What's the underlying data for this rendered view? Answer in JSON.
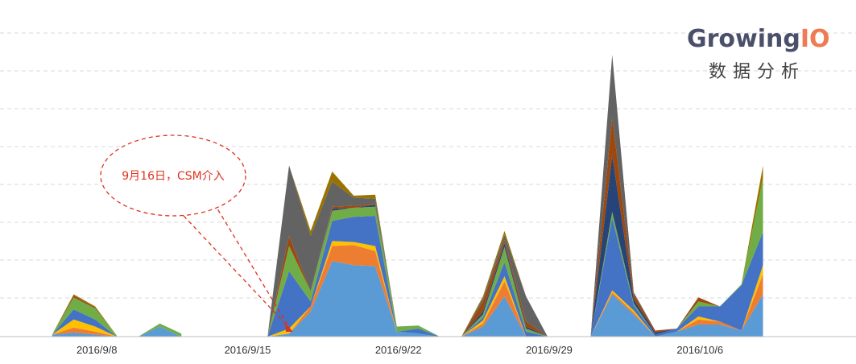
{
  "brand": {
    "name_main": "Growing",
    "name_accent": "IO",
    "subtitle": "数据分析",
    "main_color": "#4a4f6a",
    "accent_color": "#ee7b53"
  },
  "callout": {
    "text": "9月16日，CSM介入",
    "color": "#e0301e"
  },
  "chart_data": {
    "type": "area",
    "stacked": true,
    "grid": true,
    "x_tick_labels": [
      "2016/9/8",
      "2016/9/15",
      "2016/9/22",
      "2016/9/29",
      "2016/10/6"
    ],
    "y_axis_labels_visible": false,
    "colors": [
      "#5b9bd5",
      "#ed7d31",
      "#ffc000",
      "#4472c4",
      "#70ad47",
      "#264478",
      "#9e480e",
      "#636363",
      "#997300"
    ],
    "segments": [
      {
        "x": [
          1,
          2,
          3,
          4
        ],
        "series": [
          [
            2,
            4,
            2,
            0
          ],
          [
            0,
            5,
            3,
            0
          ],
          [
            0,
            8,
            5,
            0
          ],
          [
            0,
            10,
            7,
            0
          ],
          [
            0,
            12,
            11,
            1
          ],
          [
            0,
            0,
            0,
            0
          ],
          [
            0,
            2,
            1,
            0
          ],
          [
            0,
            0,
            0,
            0
          ],
          [
            0,
            1,
            1,
            0
          ]
        ]
      },
      {
        "x": [
          5,
          6,
          7
        ],
        "series": [
          [
            0,
            10,
            0
          ],
          [
            0,
            0,
            0
          ],
          [
            0,
            0,
            0
          ],
          [
            0,
            0,
            0
          ],
          [
            0,
            3,
            3
          ],
          [
            0,
            0,
            0
          ],
          [
            0,
            0,
            0
          ],
          [
            0,
            0,
            0
          ],
          [
            0,
            0,
            0
          ]
        ]
      },
      {
        "x": [
          11,
          12,
          13,
          14,
          15,
          16,
          17,
          18,
          19
        ],
        "series": [
          [
            0,
            3,
            25,
            75,
            71,
            70,
            5,
            3,
            0
          ],
          [
            0,
            0,
            5,
            15,
            20,
            15,
            0,
            0,
            0
          ],
          [
            0,
            5,
            0,
            5,
            3,
            5,
            0,
            0,
            0
          ],
          [
            0,
            57,
            5,
            20,
            25,
            30,
            0,
            5,
            0
          ],
          [
            0,
            25,
            10,
            10,
            9,
            9,
            5,
            3,
            0
          ],
          [
            0,
            0,
            0,
            2,
            0,
            2,
            0,
            0,
            0
          ],
          [
            0,
            10,
            0,
            2,
            2,
            1,
            0,
            0,
            0
          ],
          [
            0,
            70,
            55,
            25,
            8,
            5,
            0,
            0,
            0
          ],
          [
            0,
            0,
            5,
            10,
            2,
            4,
            0,
            0,
            0
          ]
        ]
      },
      {
        "x": [
          20,
          21,
          22,
          23,
          24
        ],
        "series": [
          [
            0,
            10,
            40,
            0,
            0
          ],
          [
            0,
            3,
            15,
            0,
            0
          ],
          [
            0,
            3,
            5,
            0,
            0
          ],
          [
            0,
            3,
            14,
            5,
            0
          ],
          [
            0,
            3,
            15,
            3,
            0
          ],
          [
            0,
            3,
            4,
            2,
            0
          ],
          [
            0,
            10,
            3,
            5,
            0
          ],
          [
            0,
            3,
            5,
            25,
            0
          ],
          [
            0,
            2,
            4,
            0,
            0
          ]
        ]
      },
      {
        "x": [
          26,
          27,
          28,
          29,
          30,
          31,
          32,
          33,
          34
        ],
        "series": [
          [
            0,
            42,
            22,
            0,
            5,
            12,
            12,
            6,
            42
          ],
          [
            0,
            2,
            2,
            0,
            0,
            5,
            3,
            0,
            20
          ],
          [
            0,
            2,
            2,
            0,
            0,
            3,
            0,
            0,
            9
          ],
          [
            0,
            72,
            5,
            2,
            3,
            10,
            15,
            45,
            33
          ],
          [
            0,
            6,
            2,
            0,
            0,
            5,
            0,
            1,
            53
          ],
          [
            0,
            56,
            4,
            2,
            0,
            0,
            0,
            0,
            0
          ],
          [
            0,
            38,
            5,
            2,
            0,
            4,
            0,
            0,
            0
          ],
          [
            0,
            62,
            2,
            0,
            0,
            0,
            0,
            0,
            0
          ],
          [
            0,
            0,
            0,
            0,
            0,
            0,
            0,
            0,
            13
          ]
        ]
      }
    ]
  }
}
